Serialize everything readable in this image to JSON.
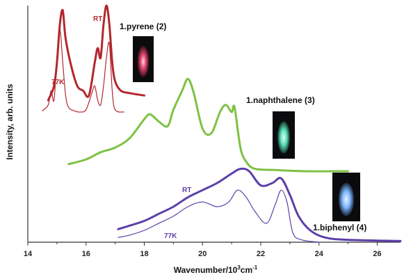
{
  "chart_data": {
    "type": "line",
    "xlabel_main": "Wavenumber/10",
    "xlabel_sup": "3",
    "xlabel_tail": "cm",
    "xlabel_sup2": "-1",
    "ylabel": "Intensity, arb. units",
    "xlim": [
      14,
      26.8
    ],
    "x_ticks": [
      "14",
      "16",
      "18",
      "20",
      "22",
      "24",
      "26"
    ],
    "annotations": {
      "pyrene_rt": "RT",
      "pyrene_77k": "77K",
      "biphenyl_rt": "RT",
      "biphenyl_77k": "77K"
    },
    "series": [
      {
        "name": "1.pyrene (2)",
        "color": "#b2272d",
        "role": "RT",
        "x": [
          14.7,
          14.9,
          15.0,
          15.1,
          15.2,
          15.3,
          15.5,
          15.7,
          15.9,
          16.1,
          16.3,
          16.4,
          16.5,
          16.6,
          16.7,
          16.8,
          16.9,
          17.0,
          17.2,
          17.5,
          18.0
        ],
        "y": [
          0.6,
          0.66,
          0.76,
          0.92,
          0.98,
          0.86,
          0.74,
          0.66,
          0.64,
          0.62,
          0.76,
          0.82,
          0.78,
          0.92,
          1.0,
          0.92,
          0.76,
          0.68,
          0.64,
          0.63,
          0.62
        ]
      },
      {
        "name": "1.pyrene (2)",
        "color": "#b2272d",
        "role": "77K",
        "x": [
          14.5,
          14.7,
          14.8,
          14.9,
          15.0,
          15.1,
          15.2,
          15.3,
          15.4,
          15.6,
          15.8,
          16.0,
          16.2,
          16.3,
          16.4,
          16.5,
          16.6,
          16.7,
          16.8,
          16.9,
          17.0,
          17.3
        ],
        "y": [
          0.555,
          0.58,
          0.64,
          0.6,
          0.78,
          0.9,
          0.76,
          0.62,
          0.57,
          0.555,
          0.55,
          0.56,
          0.63,
          0.66,
          0.6,
          0.58,
          0.66,
          0.78,
          0.84,
          0.64,
          0.56,
          0.55
        ]
      },
      {
        "name": "1.naphthalene (3)",
        "color": "#7dc242",
        "role": "RT",
        "x": [
          15.4,
          16.0,
          16.5,
          17.0,
          17.5,
          18.0,
          18.2,
          18.5,
          18.8,
          19.0,
          19.3,
          19.5,
          19.7,
          20.0,
          20.3,
          20.6,
          20.8,
          21.0,
          21.1,
          21.3,
          21.5,
          21.8,
          22.5,
          23.5,
          25.0
        ],
        "y": [
          0.33,
          0.35,
          0.38,
          0.4,
          0.44,
          0.52,
          0.54,
          0.51,
          0.49,
          0.56,
          0.64,
          0.69,
          0.63,
          0.48,
          0.46,
          0.55,
          0.58,
          0.55,
          0.57,
          0.4,
          0.34,
          0.31,
          0.305,
          0.3,
          0.3
        ]
      },
      {
        "name": "1.biphenyl (4)",
        "color": "#5b3fa8",
        "role": "RT",
        "x": [
          17.1,
          17.5,
          18.0,
          18.5,
          19.0,
          19.5,
          20.0,
          20.5,
          21.0,
          21.3,
          21.6,
          22.0,
          22.4,
          22.7,
          23.0,
          23.3,
          23.7,
          24.2,
          25.0,
          26.8
        ],
        "y": [
          0.055,
          0.07,
          0.09,
          0.12,
          0.15,
          0.19,
          0.22,
          0.25,
          0.29,
          0.31,
          0.3,
          0.24,
          0.25,
          0.27,
          0.2,
          0.11,
          0.05,
          0.02,
          0.01,
          0.005
        ]
      },
      {
        "name": "1.biphenyl (4)",
        "color": "#5b3fa8",
        "role": "77K",
        "x": [
          17.1,
          17.5,
          18.0,
          18.5,
          19.0,
          19.5,
          20.0,
          20.5,
          20.9,
          21.2,
          21.5,
          21.8,
          22.2,
          22.5,
          22.7,
          22.9,
          23.1,
          23.4,
          24.0
        ],
        "y": [
          0.02,
          0.03,
          0.05,
          0.08,
          0.11,
          0.15,
          0.17,
          0.15,
          0.17,
          0.22,
          0.19,
          0.13,
          0.08,
          0.16,
          0.22,
          0.17,
          0.04,
          0.01,
          0.0
        ]
      }
    ],
    "insets": [
      {
        "name": "1.pyrene (2)",
        "color": "#d7416a"
      },
      {
        "name": "1.naphthalene (3)",
        "color": "#5ce0b6"
      },
      {
        "name": "1.biphenyl (4)",
        "color": "#7fb8ff"
      }
    ]
  }
}
